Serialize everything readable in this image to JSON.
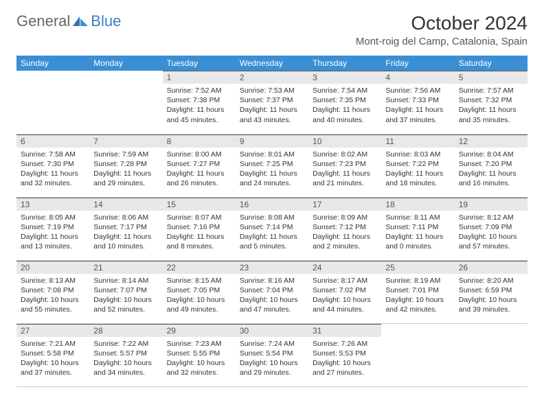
{
  "brand": {
    "part1": "General",
    "part2": "Blue"
  },
  "title": "October 2024",
  "location": "Mont-roig del Camp, Catalonia, Spain",
  "colors": {
    "header_bg": "#3a8fd4",
    "header_text": "#ffffff",
    "daynum_bg": "#e8e8e8",
    "daynum_border": "#5a5a5a",
    "logo_gray": "#666666",
    "logo_blue": "#3a7fc4",
    "body_text": "#333333"
  },
  "weekdays": [
    "Sunday",
    "Monday",
    "Tuesday",
    "Wednesday",
    "Thursday",
    "Friday",
    "Saturday"
  ],
  "weeks": [
    [
      null,
      null,
      {
        "n": "1",
        "sr": "Sunrise: 7:52 AM",
        "ss": "Sunset: 7:38 PM",
        "d1": "Daylight: 11 hours",
        "d2": "and 45 minutes."
      },
      {
        "n": "2",
        "sr": "Sunrise: 7:53 AM",
        "ss": "Sunset: 7:37 PM",
        "d1": "Daylight: 11 hours",
        "d2": "and 43 minutes."
      },
      {
        "n": "3",
        "sr": "Sunrise: 7:54 AM",
        "ss": "Sunset: 7:35 PM",
        "d1": "Daylight: 11 hours",
        "d2": "and 40 minutes."
      },
      {
        "n": "4",
        "sr": "Sunrise: 7:56 AM",
        "ss": "Sunset: 7:33 PM",
        "d1": "Daylight: 11 hours",
        "d2": "and 37 minutes."
      },
      {
        "n": "5",
        "sr": "Sunrise: 7:57 AM",
        "ss": "Sunset: 7:32 PM",
        "d1": "Daylight: 11 hours",
        "d2": "and 35 minutes."
      }
    ],
    [
      {
        "n": "6",
        "sr": "Sunrise: 7:58 AM",
        "ss": "Sunset: 7:30 PM",
        "d1": "Daylight: 11 hours",
        "d2": "and 32 minutes."
      },
      {
        "n": "7",
        "sr": "Sunrise: 7:59 AM",
        "ss": "Sunset: 7:28 PM",
        "d1": "Daylight: 11 hours",
        "d2": "and 29 minutes."
      },
      {
        "n": "8",
        "sr": "Sunrise: 8:00 AM",
        "ss": "Sunset: 7:27 PM",
        "d1": "Daylight: 11 hours",
        "d2": "and 26 minutes."
      },
      {
        "n": "9",
        "sr": "Sunrise: 8:01 AM",
        "ss": "Sunset: 7:25 PM",
        "d1": "Daylight: 11 hours",
        "d2": "and 24 minutes."
      },
      {
        "n": "10",
        "sr": "Sunrise: 8:02 AM",
        "ss": "Sunset: 7:23 PM",
        "d1": "Daylight: 11 hours",
        "d2": "and 21 minutes."
      },
      {
        "n": "11",
        "sr": "Sunrise: 8:03 AM",
        "ss": "Sunset: 7:22 PM",
        "d1": "Daylight: 11 hours",
        "d2": "and 18 minutes."
      },
      {
        "n": "12",
        "sr": "Sunrise: 8:04 AM",
        "ss": "Sunset: 7:20 PM",
        "d1": "Daylight: 11 hours",
        "d2": "and 16 minutes."
      }
    ],
    [
      {
        "n": "13",
        "sr": "Sunrise: 8:05 AM",
        "ss": "Sunset: 7:19 PM",
        "d1": "Daylight: 11 hours",
        "d2": "and 13 minutes."
      },
      {
        "n": "14",
        "sr": "Sunrise: 8:06 AM",
        "ss": "Sunset: 7:17 PM",
        "d1": "Daylight: 11 hours",
        "d2": "and 10 minutes."
      },
      {
        "n": "15",
        "sr": "Sunrise: 8:07 AM",
        "ss": "Sunset: 7:16 PM",
        "d1": "Daylight: 11 hours",
        "d2": "and 8 minutes."
      },
      {
        "n": "16",
        "sr": "Sunrise: 8:08 AM",
        "ss": "Sunset: 7:14 PM",
        "d1": "Daylight: 11 hours",
        "d2": "and 5 minutes."
      },
      {
        "n": "17",
        "sr": "Sunrise: 8:09 AM",
        "ss": "Sunset: 7:12 PM",
        "d1": "Daylight: 11 hours",
        "d2": "and 2 minutes."
      },
      {
        "n": "18",
        "sr": "Sunrise: 8:11 AM",
        "ss": "Sunset: 7:11 PM",
        "d1": "Daylight: 11 hours",
        "d2": "and 0 minutes."
      },
      {
        "n": "19",
        "sr": "Sunrise: 8:12 AM",
        "ss": "Sunset: 7:09 PM",
        "d1": "Daylight: 10 hours",
        "d2": "and 57 minutes."
      }
    ],
    [
      {
        "n": "20",
        "sr": "Sunrise: 8:13 AM",
        "ss": "Sunset: 7:08 PM",
        "d1": "Daylight: 10 hours",
        "d2": "and 55 minutes."
      },
      {
        "n": "21",
        "sr": "Sunrise: 8:14 AM",
        "ss": "Sunset: 7:07 PM",
        "d1": "Daylight: 10 hours",
        "d2": "and 52 minutes."
      },
      {
        "n": "22",
        "sr": "Sunrise: 8:15 AM",
        "ss": "Sunset: 7:05 PM",
        "d1": "Daylight: 10 hours",
        "d2": "and 49 minutes."
      },
      {
        "n": "23",
        "sr": "Sunrise: 8:16 AM",
        "ss": "Sunset: 7:04 PM",
        "d1": "Daylight: 10 hours",
        "d2": "and 47 minutes."
      },
      {
        "n": "24",
        "sr": "Sunrise: 8:17 AM",
        "ss": "Sunset: 7:02 PM",
        "d1": "Daylight: 10 hours",
        "d2": "and 44 minutes."
      },
      {
        "n": "25",
        "sr": "Sunrise: 8:19 AM",
        "ss": "Sunset: 7:01 PM",
        "d1": "Daylight: 10 hours",
        "d2": "and 42 minutes."
      },
      {
        "n": "26",
        "sr": "Sunrise: 8:20 AM",
        "ss": "Sunset: 6:59 PM",
        "d1": "Daylight: 10 hours",
        "d2": "and 39 minutes."
      }
    ],
    [
      {
        "n": "27",
        "sr": "Sunrise: 7:21 AM",
        "ss": "Sunset: 5:58 PM",
        "d1": "Daylight: 10 hours",
        "d2": "and 37 minutes."
      },
      {
        "n": "28",
        "sr": "Sunrise: 7:22 AM",
        "ss": "Sunset: 5:57 PM",
        "d1": "Daylight: 10 hours",
        "d2": "and 34 minutes."
      },
      {
        "n": "29",
        "sr": "Sunrise: 7:23 AM",
        "ss": "Sunset: 5:55 PM",
        "d1": "Daylight: 10 hours",
        "d2": "and 32 minutes."
      },
      {
        "n": "30",
        "sr": "Sunrise: 7:24 AM",
        "ss": "Sunset: 5:54 PM",
        "d1": "Daylight: 10 hours",
        "d2": "and 29 minutes."
      },
      {
        "n": "31",
        "sr": "Sunrise: 7:26 AM",
        "ss": "Sunset: 5:53 PM",
        "d1": "Daylight: 10 hours",
        "d2": "and 27 minutes."
      },
      null,
      null
    ]
  ]
}
